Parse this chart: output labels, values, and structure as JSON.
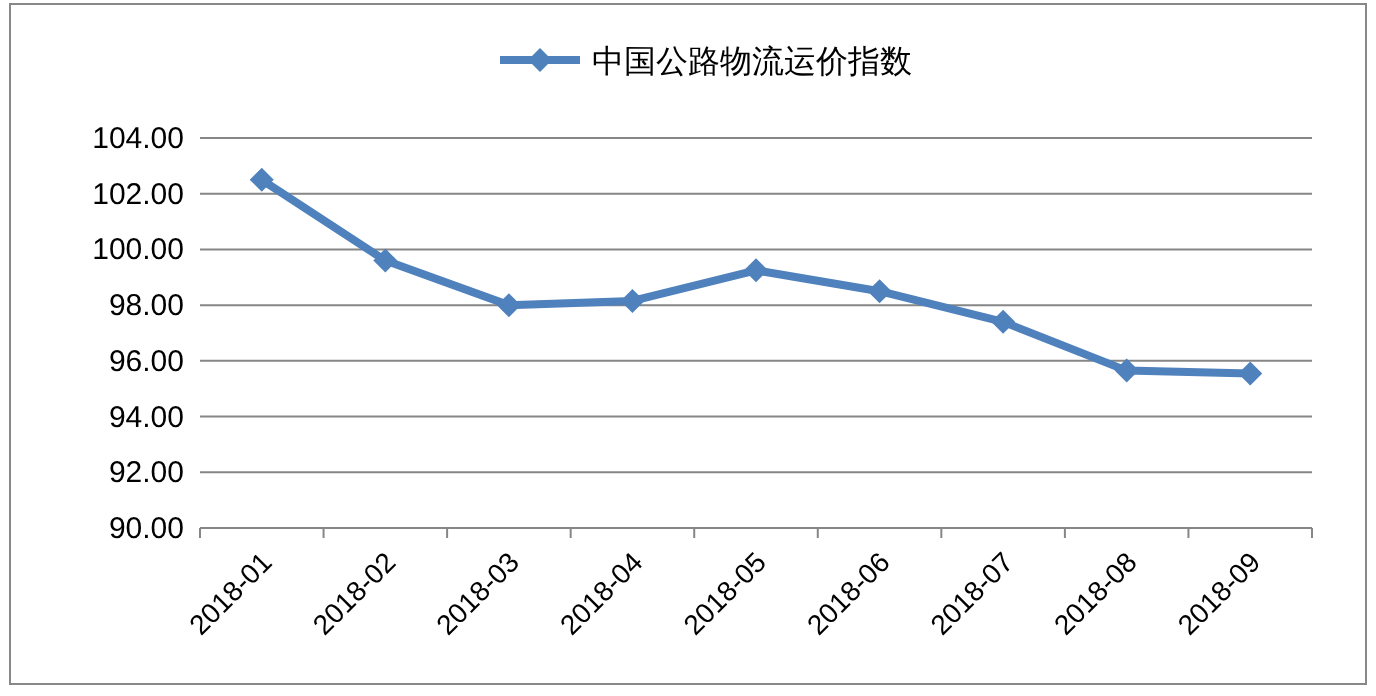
{
  "chart_data": {
    "type": "line",
    "categories": [
      "2018-01",
      "2018-02",
      "2018-03",
      "2018-04",
      "2018-05",
      "2018-06",
      "2018-07",
      "2018-08",
      "2018-09"
    ],
    "series": [
      {
        "name": "中国公路物流运价指数",
        "color": "#4f81bd",
        "values": [
          102.5,
          99.6,
          98.0,
          98.15,
          99.25,
          98.5,
          97.4,
          95.65,
          95.55
        ]
      }
    ],
    "ylim": [
      90,
      104
    ],
    "yticks": [
      {
        "value": 90,
        "label": "90.00"
      },
      {
        "value": 92,
        "label": "92.00"
      },
      {
        "value": 94,
        "label": "94.00"
      },
      {
        "value": 96,
        "label": "96.00"
      },
      {
        "value": 98,
        "label": "98.00"
      },
      {
        "value": 100,
        "label": "100.00"
      },
      {
        "value": 102,
        "label": "102.00"
      },
      {
        "value": 104,
        "label": "104.00"
      }
    ],
    "grid": "y",
    "legend": "top",
    "marker": "diamond",
    "line_style": "solid"
  }
}
